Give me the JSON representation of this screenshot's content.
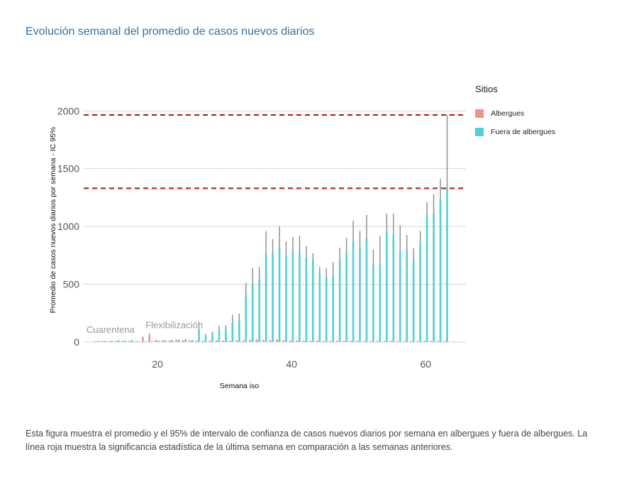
{
  "title": "Evolución semanal del promedio de casos nuevos diarios",
  "caption": "Esta figura muestra el promedio y el 95% de intervalo de confianza de casos nuevos diarios por semana en albergues y fuera de albergues. La línea roja muestra la significancia estadística de la última semana en comparación a las semanas anteriores.",
  "legend": {
    "title": "Sitios",
    "items": [
      {
        "label": "Albergues",
        "color": "#f0918e"
      },
      {
        "label": "Fuera de albergues",
        "color": "#4fd0d6"
      }
    ]
  },
  "chart_data": {
    "type": "bar",
    "xlabel": "Semana iso",
    "ylabel": "Promedio de casos nuevos diarios por semana - IC 95%",
    "xlim": [
      9,
      66
    ],
    "ylim": [
      -50,
      2100
    ],
    "xticks": [
      20,
      40,
      60
    ],
    "yticks": [
      0,
      500,
      1000,
      1500,
      2000
    ],
    "reference_lines": [
      1965,
      1330
    ],
    "annotations": [
      {
        "text": "Cuarentena",
        "x": 13,
        "y": 80
      },
      {
        "text": "Flexibilización",
        "x": 22.5,
        "y": 120
      }
    ],
    "series": [
      {
        "name": "Albergues",
        "color": "#f0918e",
        "weeks": [
          11,
          12,
          13,
          14,
          15,
          16,
          17,
          18,
          19,
          20,
          21,
          22,
          23,
          24,
          25,
          26,
          27,
          28,
          29,
          30,
          31,
          32,
          33,
          34,
          35,
          36,
          37,
          38,
          39,
          40,
          41,
          42,
          43,
          44,
          45,
          46,
          47,
          48,
          49,
          50,
          51,
          52,
          53,
          54,
          55,
          56,
          57,
          58,
          59,
          60,
          61,
          62,
          63
        ],
        "values": [
          0,
          1,
          2,
          2,
          3,
          2,
          1,
          30,
          42,
          10,
          8,
          6,
          10,
          8,
          5,
          4,
          5,
          4,
          8,
          6,
          5,
          8,
          8,
          10,
          12,
          10,
          9,
          12,
          9,
          6,
          6,
          5,
          5,
          5,
          4,
          4,
          4,
          4,
          4,
          4,
          3,
          3,
          3,
          3,
          3,
          3,
          3,
          3,
          3,
          3,
          3,
          3,
          3
        ],
        "upper": [
          0,
          2,
          4,
          4,
          5,
          4,
          3,
          45,
          75,
          18,
          14,
          12,
          20,
          14,
          10,
          8,
          10,
          8,
          16,
          12,
          10,
          14,
          14,
          20,
          22,
          20,
          16,
          22,
          16,
          12,
          12,
          10,
          10,
          10,
          8,
          8,
          8,
          8,
          8,
          8,
          6,
          6,
          6,
          6,
          6,
          6,
          6,
          6,
          6,
          6,
          6,
          6,
          6
        ]
      },
      {
        "name": "Fuera de albergues",
        "color": "#4fd0d6",
        "weeks": [
          11,
          12,
          13,
          14,
          15,
          16,
          17,
          18,
          19,
          20,
          21,
          22,
          23,
          24,
          25,
          26,
          27,
          28,
          29,
          30,
          31,
          32,
          33,
          34,
          35,
          36,
          37,
          38,
          39,
          40,
          41,
          42,
          43,
          44,
          45,
          46,
          47,
          48,
          49,
          50,
          51,
          52,
          53,
          54,
          55,
          56,
          57,
          58,
          59,
          60,
          61,
          62,
          63
        ],
        "values": [
          2,
          3,
          5,
          8,
          6,
          10,
          0,
          0,
          0,
          5,
          8,
          10,
          12,
          15,
          10,
          100,
          45,
          65,
          100,
          105,
          160,
          175,
          400,
          485,
          540,
          760,
          760,
          810,
          735,
          780,
          780,
          720,
          700,
          590,
          550,
          570,
          700,
          775,
          860,
          810,
          890,
          665,
          665,
          950,
          920,
          785,
          795,
          700,
          850,
          1095,
          1110,
          1230,
          1330
        ],
        "upper": [
          3,
          5,
          8,
          12,
          10,
          15,
          0,
          0,
          0,
          8,
          12,
          15,
          20,
          25,
          18,
          175,
          70,
          90,
          140,
          145,
          235,
          245,
          510,
          640,
          650,
          960,
          890,
          1000,
          870,
          910,
          920,
          830,
          770,
          650,
          640,
          690,
          815,
          900,
          1050,
          960,
          1100,
          800,
          915,
          1110,
          1110,
          1010,
          925,
          810,
          960,
          1210,
          1280,
          1410,
          1965
        ]
      }
    ]
  }
}
